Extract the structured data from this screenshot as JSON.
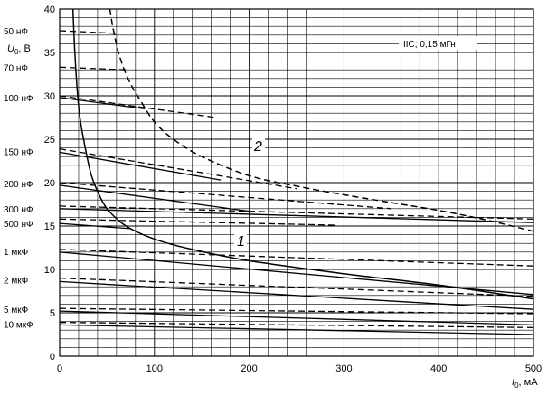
{
  "chart_data": {
    "type": "line",
    "title": "",
    "xlabel": "I",
    "xlabel_sub": "0",
    "xlabel_unit": ", мА",
    "ylabel": "U",
    "ylabel_sub": "0",
    "ylabel_unit": ", В",
    "xlim": [
      0,
      500
    ],
    "ylim": [
      0,
      40
    ],
    "x_ticks": [
      "0",
      "100",
      "200",
      "300",
      "400",
      "500"
    ],
    "y_ticks": [
      "0",
      "5",
      "10",
      "15",
      "20",
      "25",
      "30",
      "35",
      "40"
    ],
    "grid": true,
    "annotations": {
      "inductance_label": "IIC; 0,15 мГн",
      "curve1_label": "1",
      "curve2_label": "2"
    },
    "capacitance_labels": [
      {
        "text": "50 нФ",
        "y": 37.5
      },
      {
        "text": "70 нФ",
        "y": 33.3
      },
      {
        "text": "100 нФ",
        "y": 29.8
      },
      {
        "text": "150 нФ",
        "y": 23.6
      },
      {
        "text": "200 нФ",
        "y": 19.9
      },
      {
        "text": "300 нФ",
        "y": 17.0
      },
      {
        "text": "500 нФ",
        "y": 15.3
      },
      {
        "text": "1 мкФ",
        "y": 12.1
      },
      {
        "text": "2 мкФ",
        "y": 8.8
      },
      {
        "text": "5 мкФ",
        "y": 5.4
      },
      {
        "text": "10 мкФ",
        "y": 3.7
      }
    ],
    "series": [
      {
        "name": "1",
        "style": "solid",
        "x": [
          14,
          16,
          19,
          22,
          27,
          33,
          40,
          50,
          70,
          100,
          140,
          200,
          300,
          400,
          500
        ],
        "y": [
          40,
          35,
          30,
          27,
          24,
          21,
          19,
          17,
          15,
          13.5,
          12.3,
          11,
          9.5,
          8.2,
          6.6
        ]
      },
      {
        "name": "2",
        "style": "dashed",
        "x": [
          53,
          56,
          62,
          72,
          85,
          100,
          120,
          150,
          200,
          250,
          300,
          350,
          400,
          450,
          500
        ],
        "y": [
          40,
          38,
          35,
          32,
          29.5,
          27,
          25,
          23,
          20.8,
          19.6,
          18.6,
          17.7,
          16.8,
          15.7,
          14.4
        ]
      }
    ],
    "capacitance_lines": [
      {
        "style": "dashed",
        "x": [
          0,
          60
        ],
        "y": [
          37.5,
          37.2
        ]
      },
      {
        "style": "dashed",
        "x": [
          0,
          70
        ],
        "y": [
          33.3,
          33.0
        ]
      },
      {
        "style": "dashed",
        "x": [
          0,
          165
        ],
        "y": [
          30.0,
          27.5
        ]
      },
      {
        "style": "solid",
        "x": [
          0,
          90
        ],
        "y": [
          29.8,
          28.5
        ]
      },
      {
        "style": "dashed",
        "x": [
          0,
          250
        ],
        "y": [
          23.9,
          19.3
        ]
      },
      {
        "style": "solid",
        "x": [
          0,
          170
        ],
        "y": [
          23.5,
          20.3
        ]
      },
      {
        "style": "dashed",
        "x": [
          0,
          350
        ],
        "y": [
          20.0,
          17.0
        ]
      },
      {
        "style": "solid",
        "x": [
          0,
          200
        ],
        "y": [
          19.7,
          16.7
        ]
      },
      {
        "style": "dashed",
        "x": [
          0,
          500
        ],
        "y": [
          17.3,
          15.8
        ]
      },
      {
        "style": "solid",
        "x": [
          0,
          500
        ],
        "y": [
          17.0,
          15.4
        ]
      },
      {
        "style": "dashed",
        "x": [
          0,
          290
        ],
        "y": [
          15.8,
          15.1
        ]
      },
      {
        "style": "solid",
        "x": [
          0,
          75
        ],
        "y": [
          15.3,
          14.7
        ]
      },
      {
        "style": "dashed",
        "x": [
          0,
          500
        ],
        "y": [
          12.3,
          10.4
        ]
      },
      {
        "style": "solid",
        "x": [
          0,
          500
        ],
        "y": [
          12.0,
          7.1
        ]
      },
      {
        "style": "dashed",
        "x": [
          0,
          500
        ],
        "y": [
          9.0,
          6.9
        ]
      },
      {
        "style": "solid",
        "x": [
          0,
          500
        ],
        "y": [
          8.6,
          5.4
        ]
      },
      {
        "style": "dashed",
        "x": [
          0,
          500
        ],
        "y": [
          5.5,
          4.9
        ]
      },
      {
        "style": "solid",
        "x": [
          0,
          500
        ],
        "y": [
          5.2,
          3.6
        ]
      },
      {
        "style": "dashed",
        "x": [
          0,
          500
        ],
        "y": [
          3.9,
          3.3
        ]
      },
      {
        "style": "solid",
        "x": [
          0,
          500
        ],
        "y": [
          3.6,
          2.5
        ]
      }
    ]
  }
}
